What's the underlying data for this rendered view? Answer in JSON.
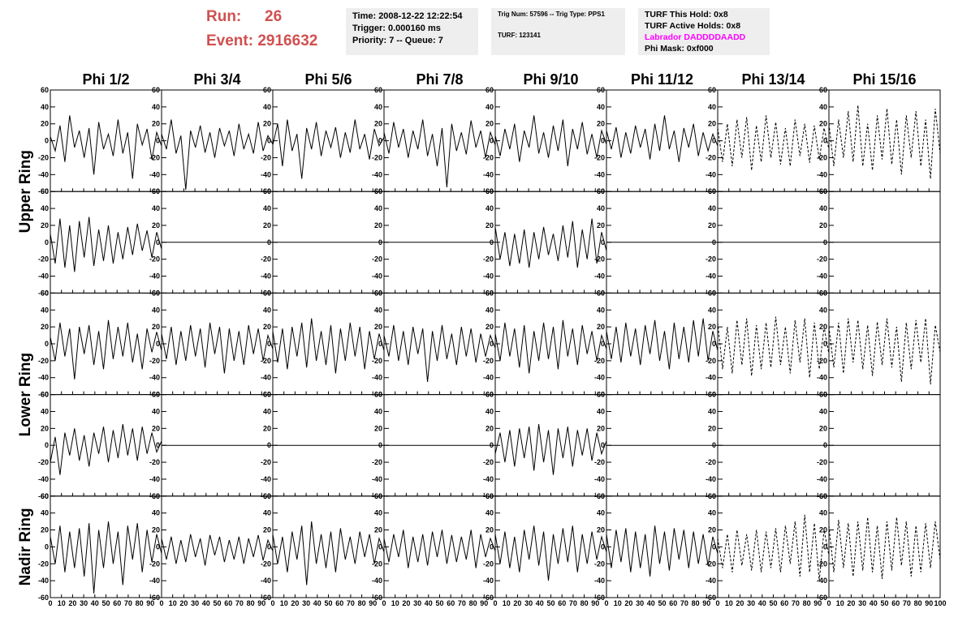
{
  "header": {
    "run_label": "Run:",
    "run": "26",
    "event_label": "Event:",
    "event": "2916632",
    "time": "Time: 2008-12-22 12:22:54",
    "trigger": "Trigger: 0.000160 ms",
    "priority": "Priority: 7 -- Queue: 7",
    "trig": "Trig Num: 57596 -- Trig Type: PPS1",
    "turf": "TURF: 123141",
    "hold": "TURF This Hold: 0x8",
    "active": "TURF Active Holds: 0x8",
    "labrador": "Labrador DADDDDAADD",
    "labrador_color": "#ff00ff",
    "phimask": "Phi Mask: 0xf000"
  },
  "chart_data": {
    "type": "line",
    "columns": [
      "Phi 1/2",
      "Phi 3/4",
      "Phi 5/6",
      "Phi 7/8",
      "Phi 9/10",
      "Phi 11/12",
      "Phi 13/14",
      "Phi 15/16"
    ],
    "row_labels": [
      "Upper Ring",
      "Lower Ring",
      "Nadir Ring"
    ],
    "xlim": [
      0,
      100
    ],
    "xticks": [
      0,
      10,
      20,
      30,
      40,
      50,
      60,
      70,
      80,
      90,
      100
    ],
    "ylim": [
      -60,
      60
    ],
    "yticks": [
      -60,
      -40,
      -20,
      0,
      20,
      40,
      60
    ],
    "panels": [
      [
        {
          "values": [
            5,
            -12,
            18,
            -25,
            30,
            -8,
            12,
            -20,
            15,
            -40,
            22,
            -10,
            8,
            -18,
            25,
            -15,
            10,
            -45,
            20,
            -5,
            14,
            -22,
            10,
            -6
          ]
        },
        {
          "values": [
            8,
            -10,
            25,
            -15,
            6,
            -58,
            12,
            -8,
            18,
            -14,
            10,
            -20,
            15,
            -6,
            12,
            -18,
            20,
            -10,
            8,
            -15,
            22,
            -12,
            6,
            -4
          ]
        },
        {
          "values": [
            -5,
            20,
            -30,
            25,
            -12,
            8,
            -45,
            15,
            -10,
            22,
            -18,
            12,
            -8,
            16,
            -20,
            10,
            -14,
            25,
            -10,
            8,
            -22,
            14,
            -6,
            4
          ]
        },
        {
          "values": [
            10,
            -15,
            22,
            -8,
            14,
            -20,
            12,
            -10,
            25,
            -18,
            8,
            -30,
            15,
            -55,
            20,
            -12,
            10,
            -16,
            24,
            -8,
            12,
            -20,
            10,
            -5
          ]
        },
        {
          "values": [
            6,
            -18,
            14,
            -10,
            20,
            -25,
            12,
            -8,
            30,
            -15,
            10,
            -20,
            18,
            -12,
            25,
            -30,
            14,
            -10,
            22,
            -16,
            8,
            -20,
            12,
            -4
          ]
        },
        {
          "values": [
            12,
            -10,
            16,
            -20,
            10,
            -15,
            18,
            -8,
            14,
            -22,
            20,
            -12,
            30,
            -10,
            12,
            -25,
            15,
            -8,
            20,
            -18,
            10,
            -12,
            8,
            -6
          ]
        },
        {
          "values": [
            15,
            -25,
            20,
            -30,
            25,
            -20,
            28,
            -35,
            18,
            -25,
            30,
            -20,
            22,
            -28,
            15,
            -30,
            25,
            -18,
            20,
            -26,
            18,
            -22,
            15,
            -10
          ],
          "dashed": true
        },
        {
          "values": [
            20,
            -30,
            25,
            -20,
            35,
            -25,
            42,
            -30,
            20,
            -35,
            30,
            -22,
            38,
            -28,
            25,
            -40,
            30,
            -20,
            35,
            -30,
            25,
            -45,
            38,
            -15
          ],
          "dashed": true
        }
      ],
      [
        {
          "values": [
            10,
            -25,
            28,
            -30,
            20,
            -35,
            25,
            -18,
            30,
            -28,
            15,
            -22,
            20,
            -25,
            12,
            -20,
            18,
            -15,
            22,
            -10,
            14,
            -18,
            12,
            -8
          ]
        },
        {
          "values": [
            0,
            0
          ]
        },
        {
          "values": [
            0,
            0
          ]
        },
        {
          "values": [
            0,
            0
          ]
        },
        {
          "values": [
            18,
            -20,
            12,
            -28,
            10,
            -25,
            15,
            -30,
            12,
            -20,
            18,
            -15,
            10,
            -22,
            20,
            -18,
            25,
            -30,
            15,
            -20,
            28,
            -25,
            12,
            -10
          ]
        },
        {
          "values": [
            0,
            0
          ]
        },
        {
          "values": [
            0,
            0
          ]
        },
        {
          "values": [
            0,
            0
          ]
        }
      ],
      [
        {
          "values": [
            8,
            -20,
            25,
            -15,
            18,
            -42,
            20,
            -12,
            22,
            -25,
            15,
            -30,
            28,
            -18,
            20,
            -15,
            25,
            -22,
            12,
            -30,
            18,
            -10,
            14,
            -8
          ]
        },
        {
          "values": [
            12,
            -18,
            20,
            -25,
            15,
            -20,
            22,
            -15,
            18,
            -28,
            25,
            -12,
            20,
            -35,
            18,
            -20,
            15,
            -25,
            22,
            -12,
            18,
            -20,
            10,
            -6
          ]
        },
        {
          "values": [
            15,
            -22,
            18,
            -30,
            20,
            -15,
            25,
            -28,
            30,
            -20,
            15,
            -25,
            22,
            -35,
            18,
            -20,
            25,
            -15,
            20,
            -30,
            15,
            -18,
            12,
            -8
          ]
        },
        {
          "values": [
            10,
            -15,
            22,
            -20,
            15,
            -25,
            20,
            -12,
            18,
            -45,
            15,
            -20,
            22,
            -18,
            12,
            -25,
            20,
            -15,
            18,
            -22,
            12,
            -15,
            10,
            -5
          ]
        },
        {
          "values": [
            12,
            -20,
            25,
            -15,
            18,
            -28,
            22,
            -35,
            15,
            -20,
            25,
            -18,
            20,
            -30,
            28,
            -15,
            18,
            -25,
            22,
            -12,
            15,
            -20,
            10,
            -6
          ]
        },
        {
          "values": [
            15,
            -18,
            20,
            -22,
            25,
            -15,
            18,
            -25,
            22,
            -12,
            28,
            -20,
            15,
            -30,
            25,
            -18,
            20,
            -22,
            28,
            -15,
            30,
            -20,
            15,
            -8
          ]
        },
        {
          "values": [
            25,
            -30,
            20,
            -35,
            28,
            -25,
            30,
            -38,
            22,
            -30,
            25,
            -28,
            32,
            -25,
            20,
            -35,
            28,
            -22,
            30,
            -40,
            25,
            -30,
            20,
            -12
          ],
          "dashed": true
        },
        {
          "values": [
            20,
            -28,
            25,
            -35,
            30,
            -22,
            28,
            -30,
            22,
            -38,
            26,
            -25,
            30,
            -28,
            20,
            -45,
            25,
            -30,
            28,
            -22,
            30,
            -48,
            22,
            -10
          ],
          "dashed": true
        }
      ],
      [
        {
          "values": [
            -20,
            10,
            -35,
            15,
            -12,
            20,
            -18,
            12,
            -25,
            15,
            -10,
            22,
            -20,
            18,
            -15,
            25,
            -12,
            20,
            -18,
            22,
            -10,
            15,
            -8,
            5
          ]
        },
        {
          "values": [
            0,
            0
          ]
        },
        {
          "values": [
            0,
            0
          ]
        },
        {
          "values": [
            0,
            0
          ]
        },
        {
          "values": [
            -10,
            15,
            -20,
            18,
            -25,
            20,
            -15,
            22,
            -30,
            25,
            -20,
            18,
            -35,
            20,
            -15,
            22,
            -25,
            18,
            -12,
            20,
            -18,
            15,
            -10,
            5
          ]
        },
        {
          "values": [
            0,
            0
          ]
        },
        {
          "values": [
            0,
            0
          ]
        },
        {
          "values": [
            0,
            0
          ]
        }
      ],
      [
        {
          "values": [
            12,
            -20,
            25,
            -30,
            18,
            -25,
            22,
            -35,
            28,
            -55,
            20,
            -25,
            30,
            -20,
            18,
            -45,
            25,
            -15,
            28,
            -30,
            20,
            -18,
            15,
            -8
          ]
        },
        {
          "values": [
            10,
            -15,
            12,
            -20,
            8,
            -18,
            15,
            -12,
            10,
            -22,
            14,
            -10,
            12,
            -18,
            8,
            -15,
            12,
            -20,
            10,
            -12,
            14,
            -16,
            8,
            -5
          ]
        },
        {
          "values": [
            15,
            -20,
            12,
            -30,
            18,
            -15,
            25,
            -45,
            30,
            -20,
            15,
            -25,
            18,
            -30,
            22,
            -15,
            12,
            -20,
            18,
            -12,
            15,
            -20,
            10,
            -6
          ]
        },
        {
          "values": [
            10,
            -18,
            15,
            -12,
            20,
            -25,
            12,
            -18,
            15,
            -22,
            18,
            -12,
            20,
            -20,
            14,
            -18,
            12,
            -15,
            20,
            -25,
            15,
            -12,
            10,
            -5
          ]
        },
        {
          "values": [
            15,
            -20,
            18,
            -25,
            12,
            -30,
            20,
            -15,
            25,
            -22,
            18,
            -40,
            15,
            -20,
            22,
            -18,
            25,
            -30,
            15,
            -20,
            18,
            -15,
            12,
            -6
          ]
        },
        {
          "values": [
            15,
            -25,
            20,
            -18,
            22,
            -30,
            18,
            -25,
            15,
            -35,
            25,
            -20,
            18,
            -28,
            22,
            -15,
            20,
            -25,
            18,
            -20,
            15,
            -22,
            12,
            -8
          ]
        },
        {
          "values": [
            10,
            -25,
            15,
            -30,
            20,
            -22,
            15,
            -28,
            20,
            -30,
            18,
            -25,
            22,
            -30,
            25,
            -20,
            30,
            -35,
            38,
            -30,
            28,
            -40,
            20,
            -10
          ],
          "dashed": true
        },
        {
          "values": [
            25,
            -30,
            32,
            -25,
            28,
            -35,
            30,
            -28,
            35,
            -30,
            25,
            -38,
            30,
            -28,
            35,
            -22,
            30,
            -35,
            25,
            -30,
            28,
            -25,
            30,
            -15
          ],
          "dashed": true
        }
      ]
    ]
  }
}
